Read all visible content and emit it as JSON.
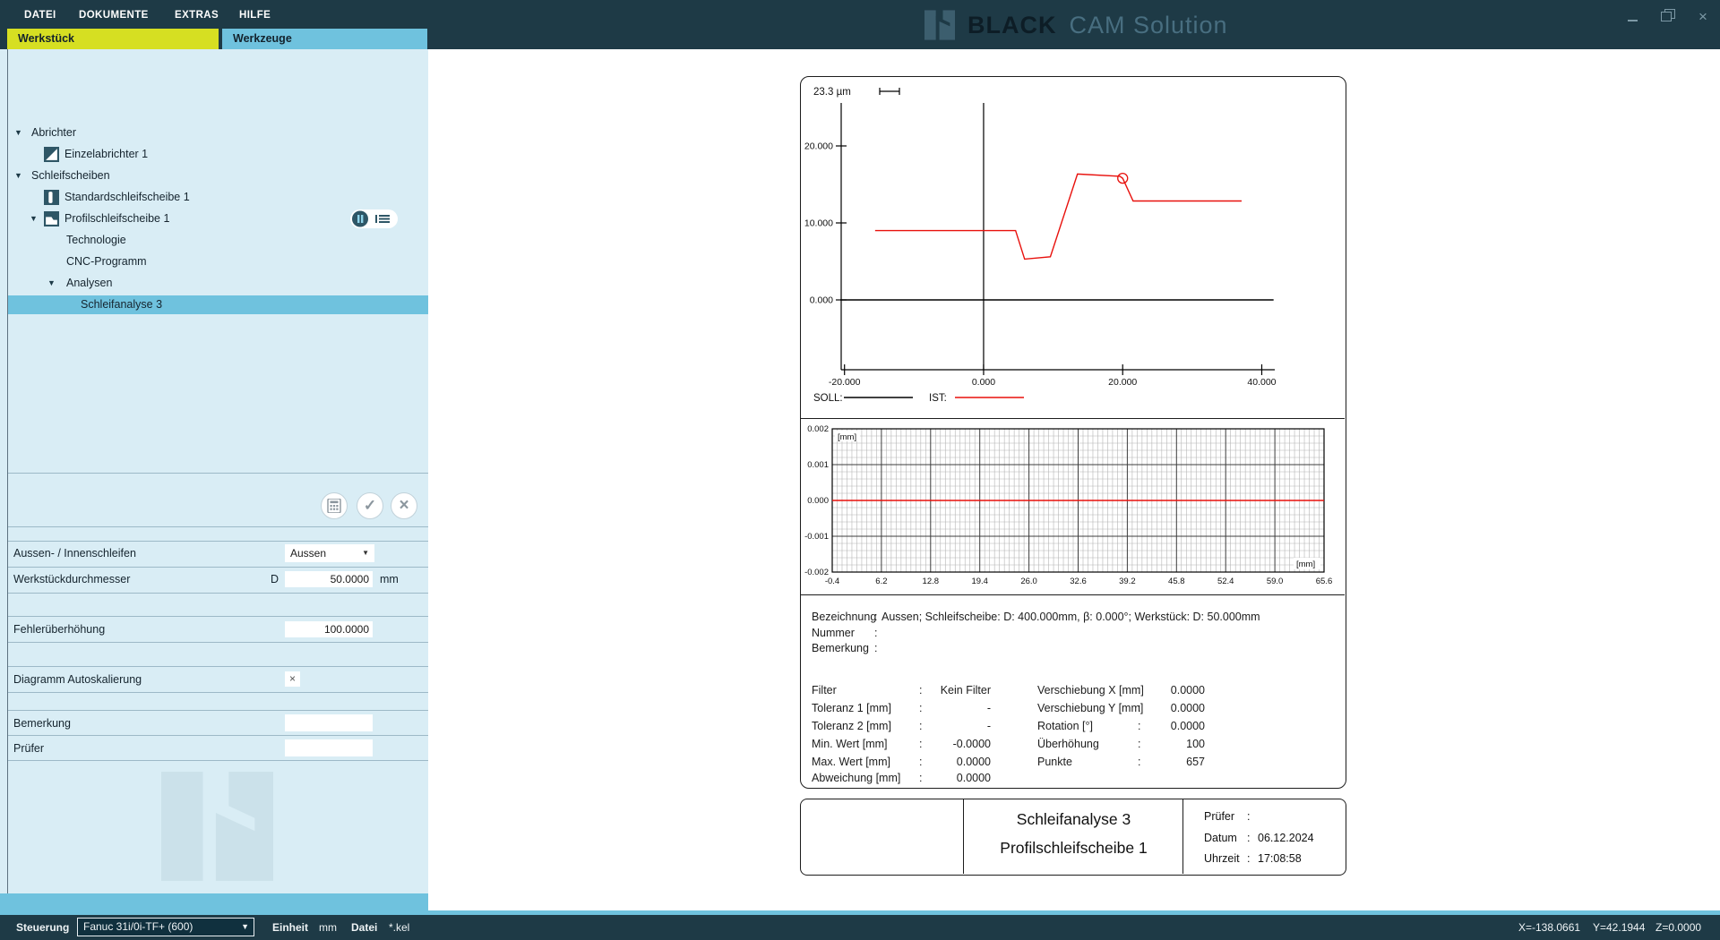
{
  "colors": {
    "header_bg": "#1e3a46",
    "tab_yellow": "#d6df22",
    "accent_blue": "#6fc2de",
    "sidebar_bg": "#d9edf5",
    "soll": "#000000",
    "ist": "#e8100c"
  },
  "menu": {
    "items": [
      "DATEI",
      "DOKUMENTE",
      "EXTRAS",
      "HILFE"
    ]
  },
  "brand": {
    "name_bold": "BLACK",
    "name_light": "CAM Solution"
  },
  "tabs": {
    "werkstueck": "Werkstück",
    "werkzeuge": "Werkzeuge"
  },
  "tree": {
    "items": [
      {
        "label": "Abrichter"
      },
      {
        "label": "Einzelabrichter 1"
      },
      {
        "label": "Schleifscheiben"
      },
      {
        "label": "Standardschleifscheibe 1"
      },
      {
        "label": "Profilschleifscheibe 1"
      },
      {
        "label": "Technologie"
      },
      {
        "label": "CNC-Programm"
      },
      {
        "label": "Analysen"
      },
      {
        "label": "Schleifanalyse 3",
        "selected": true
      }
    ]
  },
  "form": {
    "rows": [
      {
        "label": "Aussen- / Innenschleifen",
        "control": "select",
        "value": "Aussen"
      },
      {
        "label": "Werkstückdurchmesser",
        "prefix": "D",
        "value": "50.0000",
        "unit": "mm"
      },
      {
        "label": "Fehlerüberhöhung",
        "value": "100.0000"
      },
      {
        "label": "Diagramm Autoskalierung",
        "control": "checkbox",
        "value": "×"
      },
      {
        "label": "Bemerkung",
        "value": ""
      },
      {
        "label": "Prüfer",
        "value": ""
      }
    ]
  },
  "report": {
    "header": [
      {
        "label": "Bezeichnung",
        "sep": ":",
        "value": "Aussen; Schleifscheibe: D: 400.000mm, β: 0.000°; Werkstück: D: 50.000mm"
      },
      {
        "label": "Nummer",
        "sep": ":",
        "value": ""
      },
      {
        "label": "Bemerkung",
        "sep": ":",
        "value": ""
      }
    ],
    "params_left": [
      {
        "label": "Filter",
        "sep": ":",
        "value": "Kein Filter"
      },
      {
        "label": "Toleranz 1 [mm]",
        "sep": ":",
        "value": "-"
      },
      {
        "label": "Toleranz 2 [mm]",
        "sep": ":",
        "value": "-"
      },
      {
        "label": "Min. Wert [mm]",
        "sep": ":",
        "value": "-0.0000"
      },
      {
        "label": "Max. Wert [mm]",
        "sep": ":",
        "value": "0.0000"
      },
      {
        "label": "Abweichung [mm]",
        "sep": ":",
        "value": "0.0000"
      }
    ],
    "params_right": [
      {
        "label": "Verschiebung X [mm]",
        "sep": ":",
        "value": "0.0000"
      },
      {
        "label": "Verschiebung Y [mm]",
        "sep": ":",
        "value": "0.0000"
      },
      {
        "label": "Rotation [°]",
        "sep": ":",
        "value": "0.0000"
      },
      {
        "label": "Überhöhung",
        "sep": ":",
        "value": "100"
      },
      {
        "label": "Punkte",
        "sep": ":",
        "value": "657"
      }
    ],
    "title_block": {
      "line1": "Schleifanalyse 3",
      "line2": "Profilschleifscheibe 1",
      "rows": [
        {
          "label": "Prüfer",
          "sep": ":",
          "value": ""
        },
        {
          "label": "Datum",
          "sep": ":",
          "value": "06.12.2024"
        },
        {
          "label": "Uhrzeit",
          "sep": ":",
          "value": "17:08:58"
        }
      ]
    }
  },
  "statusbar": {
    "steuerung_label": "Steuerung",
    "steuerung_value": "Fanuc 31i/0i-TF+ (600)",
    "einheit_label": "Einheit",
    "einheit_value": "mm",
    "datei_label": "Datei",
    "datei_value": "*.kel",
    "coords": [
      "X=-138.0661",
      "Y=42.1944",
      "Z=0.0000"
    ]
  },
  "chart_data": [
    {
      "type": "line",
      "scale_label": "23.3 µm",
      "x_ticks": [
        -20,
        0,
        20,
        40
      ],
      "x_tick_labels": [
        "-20.000",
        "0.000",
        "20.000",
        "40.000"
      ],
      "y_ticks": [
        0,
        10,
        20
      ],
      "y_tick_labels": [
        "0.000",
        "10.000",
        "20.000"
      ],
      "xlim": [
        -20.6,
        41.8
      ],
      "ylim": [
        -9.1,
        25.8
      ],
      "grid": false,
      "zero_axis_vline_x": 0,
      "legend_position": "bottom",
      "series": [
        {
          "name": "SOLL",
          "legend_label": "SOLL:",
          "color": "#000000",
          "points": [
            [
              -20.6,
              0
            ],
            [
              41.7,
              0
            ]
          ]
        },
        {
          "name": "IST",
          "legend_label": "IST:",
          "color": "#e8100c",
          "points": [
            [
              -15.6,
              9.0
            ],
            [
              4.6,
              9.0
            ],
            [
              5.9,
              5.3
            ],
            [
              9.6,
              5.6
            ],
            [
              13.5,
              16.35
            ],
            [
              19.6,
              16.05
            ],
            [
              20.0,
              15.8
            ],
            [
              21.5,
              12.85
            ],
            [
              37.1,
              12.85
            ]
          ]
        }
      ],
      "marker": {
        "series": "IST",
        "x": 20.0,
        "y": 15.8
      }
    },
    {
      "type": "line",
      "unit_label": "[mm]",
      "x_tick_labels": [
        "-0.4",
        "6.2",
        "12.8",
        "19.4",
        "26.0",
        "32.6",
        "39.2",
        "45.8",
        "52.4",
        "59.0",
        "65.6"
      ],
      "y_tick_labels": [
        "0.002",
        "0.001",
        "0.000",
        "-0.001",
        "-0.002"
      ],
      "xlim": [
        -0.4,
        65.6
      ],
      "ylim": [
        -0.002,
        0.002
      ],
      "grid": "fine",
      "series": [
        {
          "name": "Abweichung",
          "color": "#e8100c",
          "points": [
            [
              -0.4,
              0
            ],
            [
              65.6,
              0
            ]
          ]
        }
      ]
    }
  ]
}
